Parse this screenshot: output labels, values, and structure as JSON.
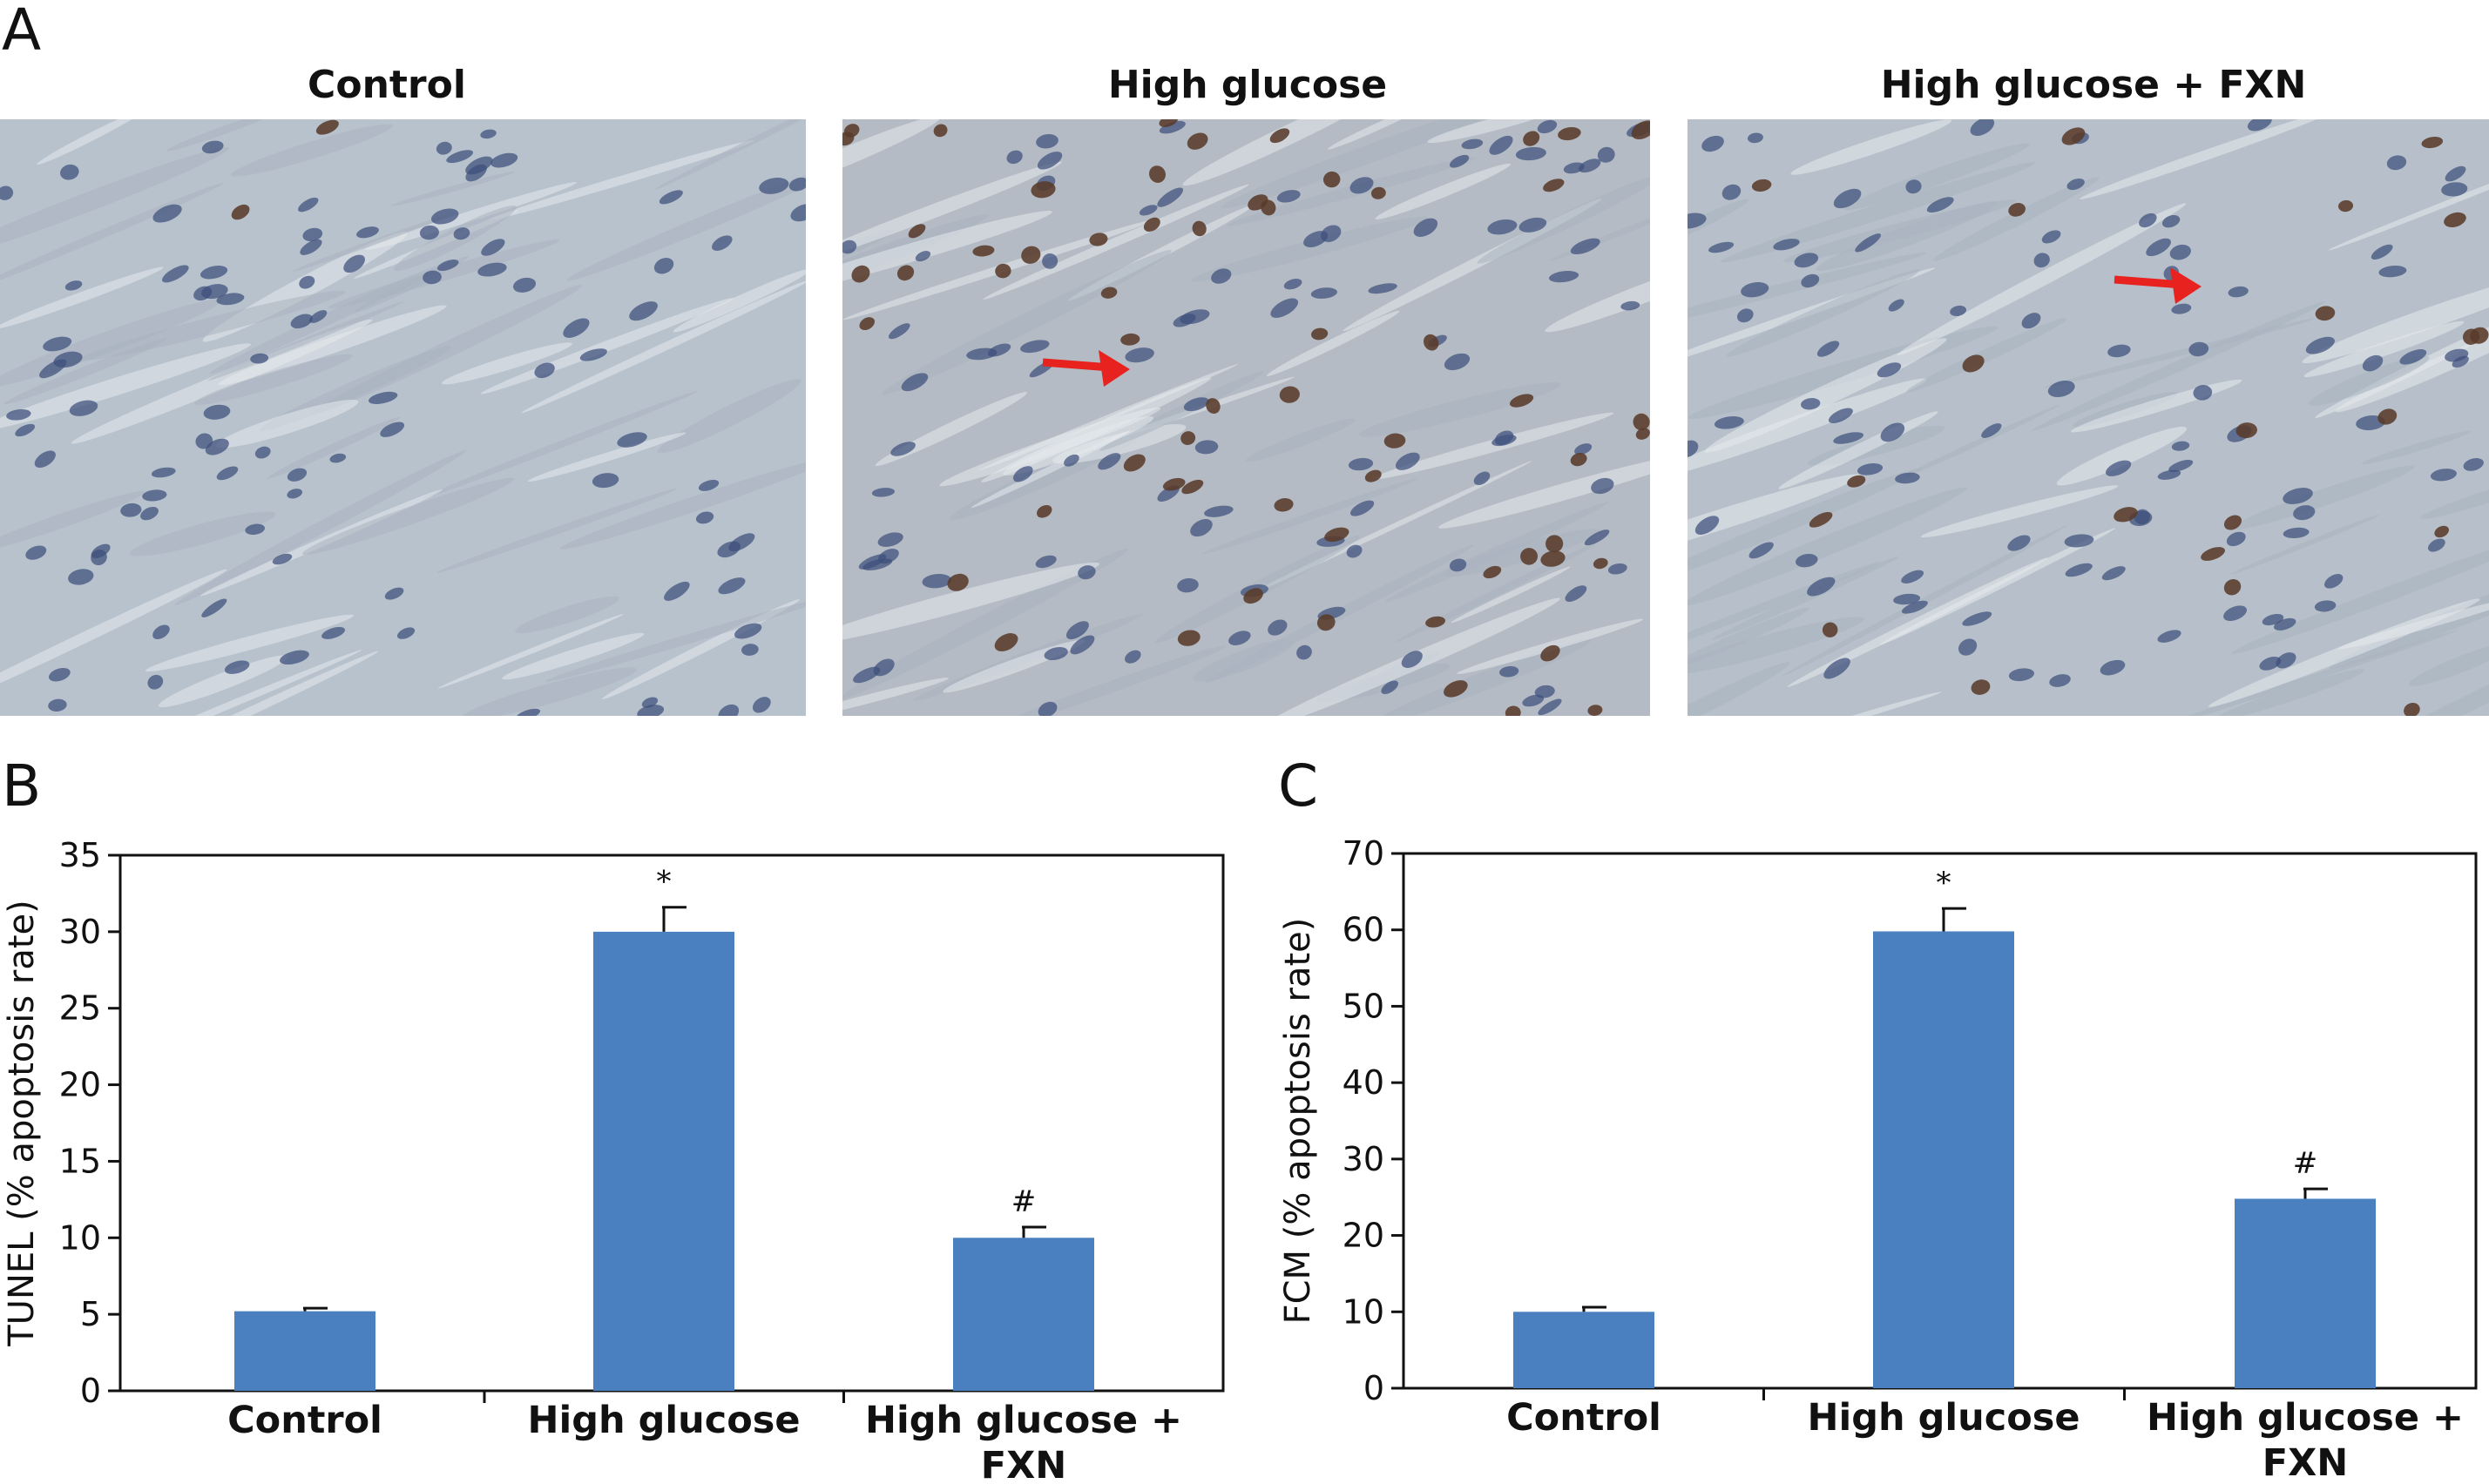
{
  "panel_a": {
    "letter": "A",
    "images": [
      {
        "title": "Control",
        "tissue": "#b8c2cd",
        "nuclei_brown": 2,
        "arrow": false
      },
      {
        "title": "High glucose",
        "tissue": "#b4bbc4",
        "nuclei_brown": 60,
        "arrow": true
      },
      {
        "title": "High glucose + FXN",
        "tissue": "#b7c0ca",
        "nuclei_brown": 22,
        "arrow": true
      }
    ],
    "arrow_color": "#e8231f",
    "nucleus_blue": "#3d4f7c",
    "nucleus_brown": "#5a3b2a"
  },
  "chart_data": [
    {
      "letter": "B",
      "type": "bar",
      "categories": [
        [
          "Control"
        ],
        [
          "High glucose"
        ],
        [
          "High glucose +",
          "FXN"
        ]
      ],
      "values": [
        5.2,
        30.0,
        10.0
      ],
      "errors": [
        0.2,
        1.6,
        0.7
      ],
      "significance": [
        "",
        "*",
        "#"
      ],
      "ylabel": "TUNEL (% apoptosis rate)",
      "ylim": [
        0,
        35
      ],
      "yticks": [
        0,
        5,
        10,
        15,
        20,
        25,
        30,
        35
      ],
      "bar_color": "#4a80bf"
    },
    {
      "letter": "C",
      "type": "bar",
      "categories": [
        [
          "Control"
        ],
        [
          "High glucose"
        ],
        [
          "High glucose +",
          "FXN"
        ]
      ],
      "values": [
        10.0,
        59.8,
        24.8
      ],
      "errors": [
        0.6,
        3.0,
        1.3
      ],
      "significance": [
        "",
        "*",
        "#"
      ],
      "ylabel": "FCM (% apoptosis rate)",
      "ylim": [
        0,
        70
      ],
      "yticks": [
        0,
        10,
        20,
        30,
        40,
        50,
        60,
        70
      ],
      "bar_color": "#4a80bf"
    }
  ]
}
